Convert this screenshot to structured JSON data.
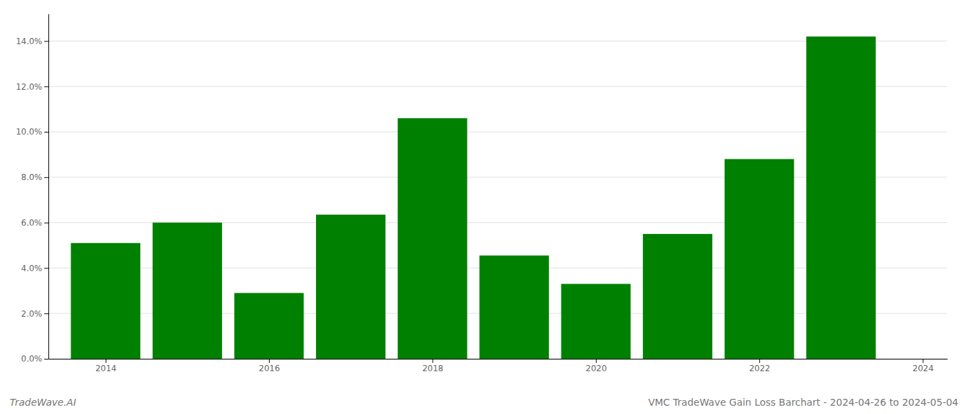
{
  "chart_data": {
    "type": "bar",
    "title": "VMC TradeWave Gain Loss Barchart - 2024-04-26 to 2024-05-04",
    "annotations": [
      "TradeWave.AI"
    ],
    "x": [
      2014,
      2015,
      2016,
      2017,
      2018,
      2019,
      2020,
      2021,
      2022,
      2023
    ],
    "values": [
      0.051,
      0.06,
      0.029,
      0.0635,
      0.106,
      0.0455,
      0.033,
      0.055,
      0.088,
      0.142
    ],
    "color": "#008000",
    "xlim": [
      2013.3,
      2024.3
    ],
    "xticks": [
      2014,
      2016,
      2018,
      2020,
      2022,
      2024
    ],
    "ylim": [
      0,
      0.152
    ],
    "yticks": [
      {
        "value": 0.0,
        "label": "0.0%"
      },
      {
        "value": 0.02,
        "label": "2.0%"
      },
      {
        "value": 0.04,
        "label": "4.0%"
      },
      {
        "value": 0.06,
        "label": "6.0%"
      },
      {
        "value": 0.08,
        "label": "8.0%"
      },
      {
        "value": 0.1,
        "label": "10.0%"
      },
      {
        "value": 0.12,
        "label": "12.0%"
      },
      {
        "value": 0.14,
        "label": "14.0%"
      }
    ],
    "grid": true
  }
}
